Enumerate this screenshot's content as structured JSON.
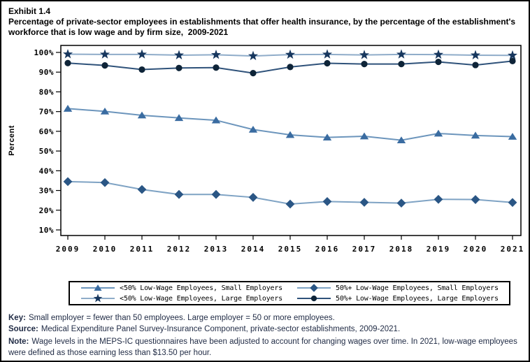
{
  "header": {
    "exhibit_label": "Exhibit 1.4",
    "title": "Percentage of private-sector employees in establishments that offer health insurance, by the percentage of the establishment's workforce that is low wage and by firm size,  2009-2021"
  },
  "chart_data": {
    "type": "line",
    "x": [
      2009,
      2010,
      2011,
      2012,
      2013,
      2014,
      2015,
      2016,
      2017,
      2018,
      2019,
      2020,
      2021
    ],
    "xlabel": "",
    "ylabel": "Percent",
    "ylim": [
      10,
      100
    ],
    "yticks": [
      10,
      20,
      30,
      40,
      50,
      60,
      70,
      80,
      90,
      100
    ],
    "ytick_suffix": "%",
    "grid": false,
    "legend_position": "bottom",
    "series": [
      {
        "name": "<50% Low-Wage Employees, Small Employers",
        "marker": "triangle",
        "marker_color": "#3A6CA1",
        "line_color": "#6C95BC",
        "values": [
          71.5,
          70.1,
          68.1,
          66.8,
          65.6,
          60.9,
          58.2,
          56.9,
          57.5,
          55.5,
          58.9,
          57.9,
          57.3
        ]
      },
      {
        "name": "50%+ Low-Wage Employees, Small Employers",
        "marker": "diamond",
        "marker_color": "#2A5685",
        "line_color": "#7FA3C4",
        "values": [
          34.5,
          34.0,
          30.5,
          28.0,
          28.0,
          26.5,
          23.1,
          24.4,
          24.0,
          23.6,
          25.5,
          25.4,
          23.9
        ]
      },
      {
        "name": "<50% Low-Wage Employees, Large Employers",
        "marker": "star",
        "marker_color": "#17375E",
        "line_color": "#8FACC9",
        "values": [
          99.1,
          99.0,
          99.0,
          98.6,
          98.8,
          98.2,
          98.9,
          99.0,
          98.7,
          99.0,
          98.9,
          98.6,
          98.5
        ]
      },
      {
        "name": "50%+ Low-Wage Employees, Large Employers",
        "marker": "circle",
        "marker_color": "#0E2438",
        "line_color": "#2F527A",
        "values": [
          94.6,
          93.4,
          91.3,
          92.1,
          92.3,
          89.5,
          92.6,
          94.5,
          94.1,
          94.1,
          95.2,
          93.6,
          95.6
        ]
      }
    ]
  },
  "notes": {
    "key_label": "Key:",
    "key_text": "Small employer = fewer than 50 employees. Large employer = 50 or more employees.",
    "source_label": "Source:",
    "source_text": "Medical Expenditure Panel Survey-Insurance Component, private-sector establishments, 2009-2021.",
    "note_label": "Note:",
    "note_text": "Wage levels in the MEPS-IC questionnaires have been adjusted to account for changing wages over time. In 2021, low-wage employees were defined as those earning less than $13.50 per hour."
  }
}
